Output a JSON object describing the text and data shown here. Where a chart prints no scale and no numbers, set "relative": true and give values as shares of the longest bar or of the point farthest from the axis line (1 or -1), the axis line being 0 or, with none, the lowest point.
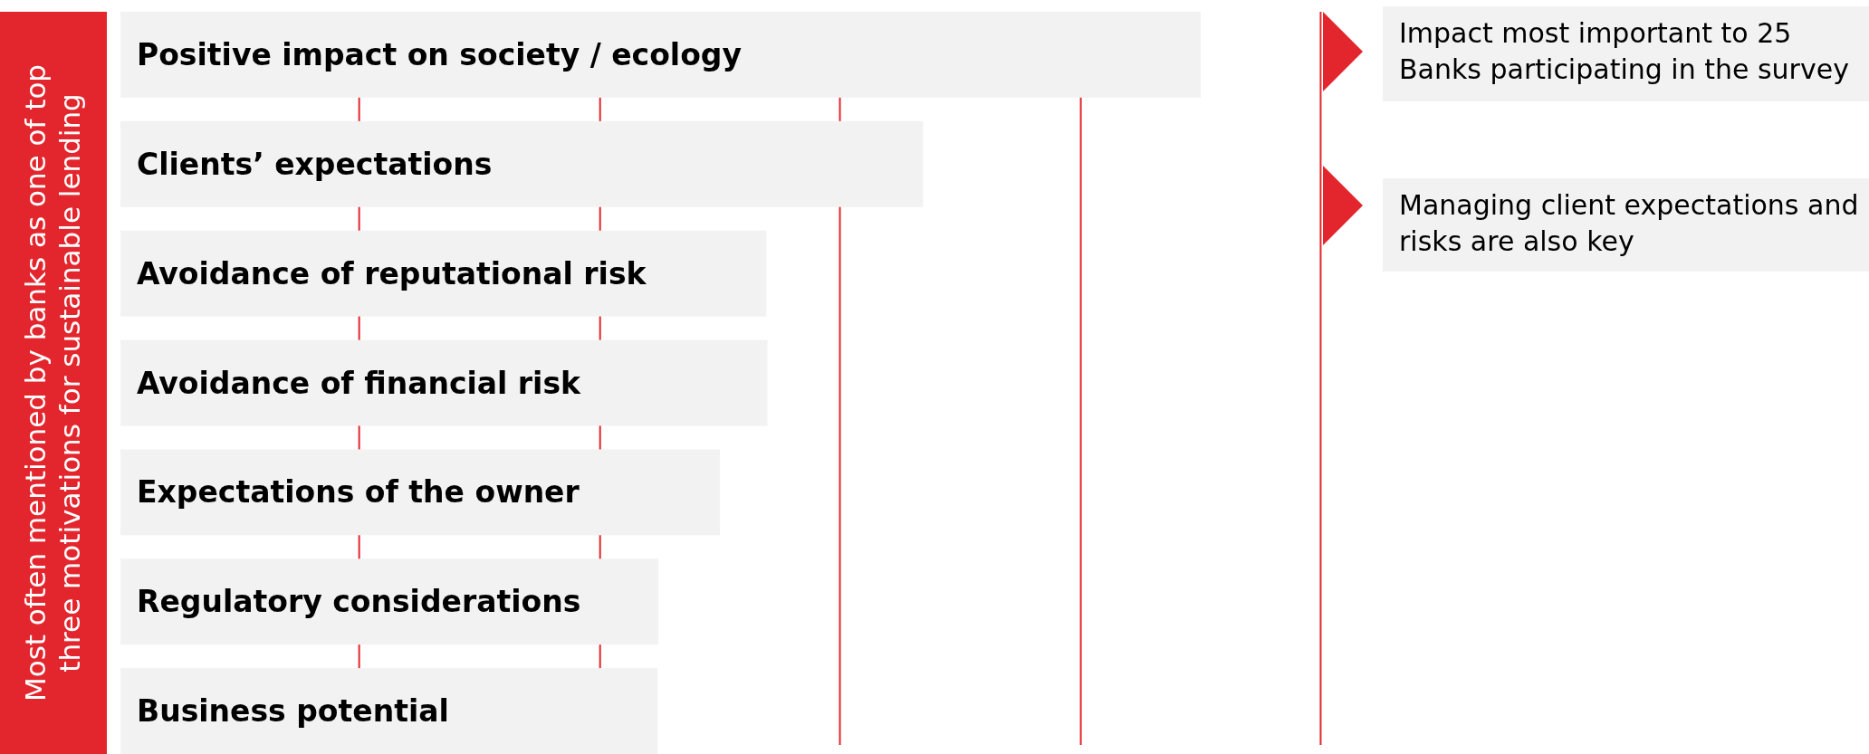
{
  "chart_data": {
    "type": "bar",
    "orientation": "horizontal",
    "relative": true,
    "ylabel": "Most often mentioned by banks as one of top three motivations for sustainable lending",
    "categories": [
      "Positive impact on society / ecology",
      "Clients’ expectations",
      "Avoidance of reputational risk",
      "Avoidance of financial risk",
      "Expectations of the owner",
      "Regulatory considerations",
      "Business potential"
    ],
    "values": [
      1,
      0.743,
      0.598,
      0.599,
      0.555,
      0.498,
      0.497
    ],
    "color": "#f2f2f2",
    "ref_lines": [
      {
        "axis": "x",
        "value": 0.221,
        "color": "#e3262d"
      },
      {
        "axis": "x",
        "value": 0.444,
        "color": "#e3262d"
      },
      {
        "axis": "x",
        "value": 0.666,
        "color": "#e3262d"
      },
      {
        "axis": "x",
        "value": 0.889,
        "color": "#e3262d"
      },
      {
        "axis": "x",
        "value": 1.111,
        "color": "#e3262d"
      }
    ],
    "annotations": [
      "Impact most important to 25 Banks participating in the survey",
      "Managing client expectations and risks are also key"
    ]
  }
}
